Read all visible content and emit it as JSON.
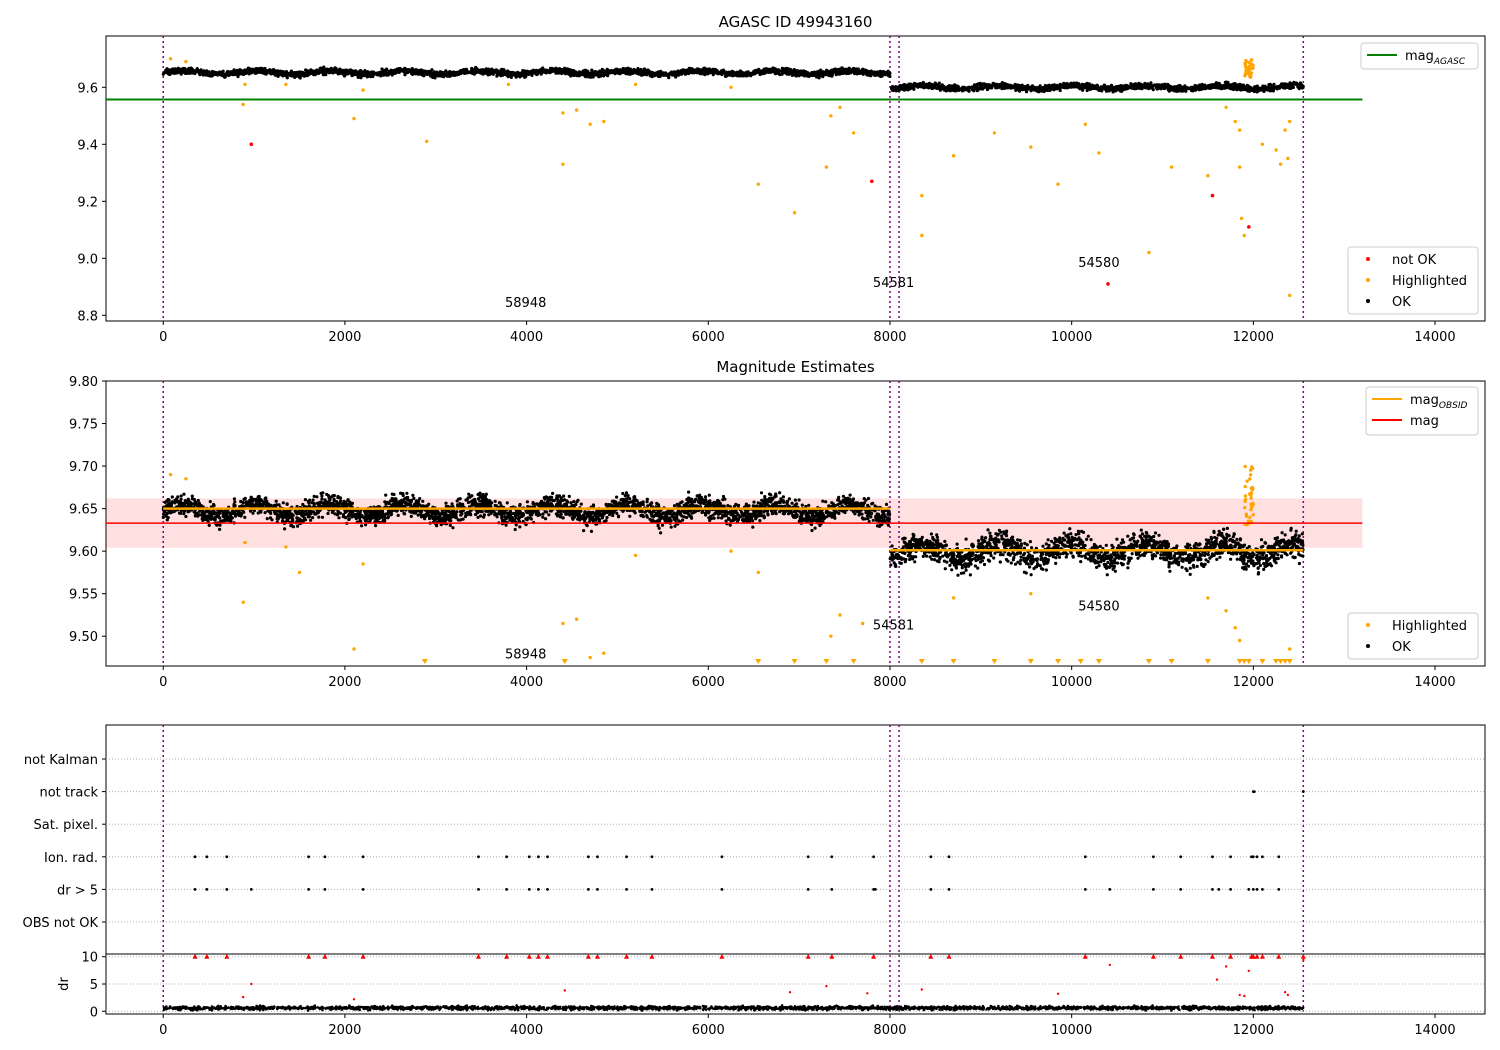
{
  "chart_data": [
    {
      "type": "scatter",
      "title": "AGASC ID 49943160",
      "xlim": [
        -630,
        14550
      ],
      "ylim": [
        8.78,
        9.78
      ],
      "xticks": [
        0,
        2000,
        4000,
        6000,
        8000,
        10000,
        12000,
        14000
      ],
      "yticks": [
        8.8,
        9.0,
        9.2,
        9.4,
        9.6
      ],
      "ytick_labels": [
        "8.8",
        "9.0",
        "9.2",
        "9.4",
        "9.6"
      ],
      "vlines": [
        0,
        8000,
        8100,
        12550
      ],
      "hline": {
        "label": "mag",
        "label_sub": "AGASC",
        "y": 9.557,
        "x_end": 13200,
        "color": "#008000"
      },
      "obsid_labels": [
        {
          "text": "58948",
          "x": 3990,
          "y": 8.83
        },
        {
          "text": "54581",
          "x": 8040,
          "y": 8.9
        },
        {
          "text": "54580",
          "x": 10300,
          "y": 8.97
        }
      ],
      "series": [
        {
          "name": "not OK",
          "color": "#ff0000",
          "points": [
            [
              970,
              9.4
            ],
            [
              7800,
              9.27
            ],
            [
              11550,
              9.22
            ],
            [
              11950,
              9.11
            ],
            [
              10400,
              8.91
            ]
          ]
        },
        {
          "name": "Highlighted",
          "color": "#ffa500",
          "points": [
            [
              80,
              9.7
            ],
            [
              250,
              9.69
            ],
            [
              900,
              9.61
            ],
            [
              880,
              9.54
            ],
            [
              2100,
              9.49
            ],
            [
              2900,
              9.41
            ],
            [
              4400,
              9.51
            ],
            [
              4400,
              9.33
            ],
            [
              4550,
              9.52
            ],
            [
              4700,
              9.47
            ],
            [
              4850,
              9.48
            ],
            [
              6550,
              9.26
            ],
            [
              6950,
              9.16
            ],
            [
              7350,
              9.5
            ],
            [
              7450,
              9.53
            ],
            [
              7600,
              9.44
            ],
            [
              7300,
              9.32
            ],
            [
              8350,
              9.08
            ],
            [
              8350,
              9.22
            ],
            [
              8700,
              9.36
            ],
            [
              9150,
              9.44
            ],
            [
              9550,
              9.39
            ],
            [
              9850,
              9.26
            ],
            [
              10150,
              9.47
            ],
            [
              10300,
              9.37
            ],
            [
              10850,
              9.02
            ],
            [
              11100,
              9.32
            ],
            [
              11500,
              9.29
            ],
            [
              11700,
              9.53
            ],
            [
              11800,
              9.48
            ],
            [
              11850,
              9.45
            ],
            [
              11850,
              9.32
            ],
            [
              11870,
              9.14
            ],
            [
              11900,
              9.08
            ],
            [
              12100,
              9.4
            ],
            [
              12250,
              9.38
            ],
            [
              12300,
              9.33
            ],
            [
              12350,
              9.45
            ],
            [
              12380,
              9.35
            ],
            [
              12400,
              9.48
            ],
            [
              12400,
              8.87
            ],
            [
              1350,
              9.61
            ],
            [
              2200,
              9.59
            ],
            [
              3800,
              9.61
            ],
            [
              5200,
              9.61
            ],
            [
              6250,
              9.6
            ]
          ],
          "cluster": {
            "x_range": [
              11900,
              12000
            ],
            "y_range": [
              9.63,
              9.7
            ]
          }
        },
        {
          "name": "OK",
          "color": "#000000",
          "bands": [
            {
              "x_range": [
                0,
                8000
              ],
              "y_mean": 9.652,
              "y_spread": 0.013
            },
            {
              "x_range": [
                8000,
                12550
              ],
              "y_mean": 9.6,
              "y_spread": 0.013
            }
          ]
        }
      ],
      "legends": [
        {
          "items": [
            {
              "label": "mag",
              "sub": "AGASC",
              "kind": "line",
              "color": "#008000"
            }
          ]
        },
        {
          "items": [
            {
              "label": "not OK",
              "kind": "dot",
              "color": "#ff0000"
            },
            {
              "label": "Highlighted",
              "kind": "dot",
              "color": "#ffa500"
            },
            {
              "label": "OK",
              "kind": "dot",
              "color": "#000000"
            }
          ]
        }
      ]
    },
    {
      "type": "scatter",
      "title": "Magnitude Estimates",
      "xlim": [
        -630,
        14550
      ],
      "ylim": [
        9.465,
        9.8
      ],
      "xticks": [
        0,
        2000,
        4000,
        6000,
        8000,
        10000,
        12000,
        14000
      ],
      "yticks": [
        9.5,
        9.55,
        9.6,
        9.65,
        9.7,
        9.75,
        9.8
      ],
      "ytick_labels": [
        "9.50",
        "9.55",
        "9.60",
        "9.65",
        "9.70",
        "9.75",
        "9.80"
      ],
      "vlines": [
        0,
        8000,
        8100,
        12550
      ],
      "mag_line": {
        "y": 9.633,
        "band": [
          9.604,
          9.662
        ],
        "x_end": 13200,
        "color": "#ff0000"
      },
      "obsid_mags": [
        {
          "x_range": [
            0,
            8000
          ],
          "y": 9.65,
          "color": "#ffa500"
        },
        {
          "x_range": [
            8000,
            12550
          ],
          "y": 9.601,
          "color": "#ffa500"
        }
      ],
      "obsid_labels": [
        {
          "text": "58948",
          "x": 3990,
          "y": 9.474
        },
        {
          "text": "54581",
          "x": 8040,
          "y": 9.508
        },
        {
          "text": "54580",
          "x": 10300,
          "y": 9.53
        }
      ],
      "series": [
        {
          "name": "Highlighted",
          "color": "#ffa500",
          "points": [
            [
              80,
              9.69
            ],
            [
              250,
              9.685
            ],
            [
              880,
              9.54
            ],
            [
              900,
              9.61
            ],
            [
              1350,
              9.605
            ],
            [
              1500,
              9.575
            ],
            [
              2100,
              9.485
            ],
            [
              2200,
              9.585
            ],
            [
              4400,
              9.515
            ],
            [
              4550,
              9.52
            ],
            [
              4700,
              9.475
            ],
            [
              4850,
              9.48
            ],
            [
              6550,
              9.575
            ],
            [
              7350,
              9.5
            ],
            [
              7450,
              9.525
            ],
            [
              7700,
              9.515
            ],
            [
              8700,
              9.545
            ],
            [
              9550,
              9.55
            ],
            [
              11500,
              9.545
            ],
            [
              11700,
              9.53
            ],
            [
              11800,
              9.51
            ],
            [
              11850,
              9.495
            ],
            [
              12400,
              9.485
            ],
            [
              5200,
              9.595
            ],
            [
              6250,
              9.6
            ]
          ],
          "offscale_x": [
            2880,
            4420,
            6550,
            6950,
            7300,
            7600,
            8350,
            8700,
            9150,
            9550,
            9850,
            10100,
            10300,
            10850,
            11100,
            11500,
            11850,
            11900,
            11950,
            12100,
            12250,
            12300,
            12350,
            12400
          ],
          "cluster": {
            "x_range": [
              11900,
              12000
            ],
            "y_range": [
              9.63,
              9.7
            ]
          }
        },
        {
          "name": "OK",
          "color": "#000000",
          "bands": [
            {
              "x_range": [
                0,
                8000
              ],
              "y_mean": 9.648,
              "y_spread": 0.016
            },
            {
              "x_range": [
                8000,
                12550
              ],
              "y_mean": 9.6,
              "y_spread": 0.02
            }
          ]
        }
      ],
      "legends": [
        {
          "items": [
            {
              "label": "mag",
              "sub": "OBSID",
              "kind": "line",
              "color": "#ffa500"
            },
            {
              "label": "mag",
              "kind": "line",
              "color": "#ff0000"
            }
          ]
        },
        {
          "items": [
            {
              "label": "Highlighted",
              "kind": "dot",
              "color": "#ffa500"
            },
            {
              "label": "OK",
              "kind": "dot",
              "color": "#000000"
            }
          ]
        }
      ]
    },
    {
      "type": "scatter",
      "title": "",
      "xlim": [
        -630,
        14550
      ],
      "xticks": [
        0,
        2000,
        4000,
        6000,
        8000,
        10000,
        12000,
        14000
      ],
      "vlines": [
        0,
        8000,
        8100,
        12550
      ],
      "flag_categories": [
        "not Kalman",
        "not track",
        "Sat. pixel.",
        "Ion. rad.",
        "dr > 5",
        "OBS not OK"
      ],
      "flag_points": {
        "not Kalman": [],
        "not track": [
          12000,
          12010,
          12550
        ],
        "Sat. pixel.": [],
        "Ion. rad.": [
          350,
          480,
          700,
          1600,
          1780,
          2200,
          3470,
          3780,
          4030,
          4130,
          4230,
          4680,
          4780,
          5100,
          5380,
          6150,
          7100,
          7360,
          7820,
          8450,
          8650,
          10150,
          10900,
          11200,
          11550,
          11750,
          11980,
          12000,
          12040,
          12100,
          12280
        ],
        "dr > 5": [
          350,
          480,
          700,
          970,
          1600,
          1780,
          2200,
          3470,
          3780,
          4030,
          4130,
          4230,
          4680,
          4780,
          5100,
          5380,
          6150,
          7100,
          7360,
          7820,
          7840,
          8450,
          8650,
          10150,
          10420,
          10900,
          11200,
          11550,
          11620,
          11750,
          11950,
          12000,
          12040,
          12100,
          12280
        ],
        "OBS not OK": []
      },
      "dr": {
        "ylabel": "dr",
        "ylim": [
          -0.5,
          10.5
        ],
        "yticks": [
          0,
          5,
          10
        ],
        "ytick_labels": [
          "0",
          "5",
          "10"
        ],
        "capped_x": [
          350,
          480,
          700,
          1600,
          1780,
          2200,
          3470,
          3780,
          4030,
          4130,
          4230,
          4680,
          4780,
          5100,
          5380,
          6150,
          7100,
          7360,
          7820,
          8450,
          8650,
          10150,
          10900,
          11200,
          11550,
          11750,
          11980,
          12000,
          12040,
          12100,
          12280,
          12550
        ],
        "highlight_points": [
          [
            970,
            5.0
          ],
          [
            880,
            2.6
          ],
          [
            2100,
            2.2
          ],
          [
            4420,
            3.8
          ],
          [
            6900,
            3.5
          ],
          [
            7300,
            4.6
          ],
          [
            7750,
            3.3
          ],
          [
            8350,
            4.0
          ],
          [
            10420,
            8.5
          ],
          [
            11600,
            5.8
          ],
          [
            11700,
            8.2
          ],
          [
            11850,
            3.0
          ],
          [
            11900,
            2.8
          ],
          [
            11950,
            7.4
          ],
          [
            12350,
            3.5
          ],
          [
            12380,
            3.0
          ],
          [
            9850,
            3.2
          ],
          [
            12550,
            9.4
          ]
        ],
        "ok_band": {
          "x_range": [
            0,
            12550
          ],
          "y_mean": 0.6,
          "y_spread": 0.4
        }
      }
    }
  ]
}
